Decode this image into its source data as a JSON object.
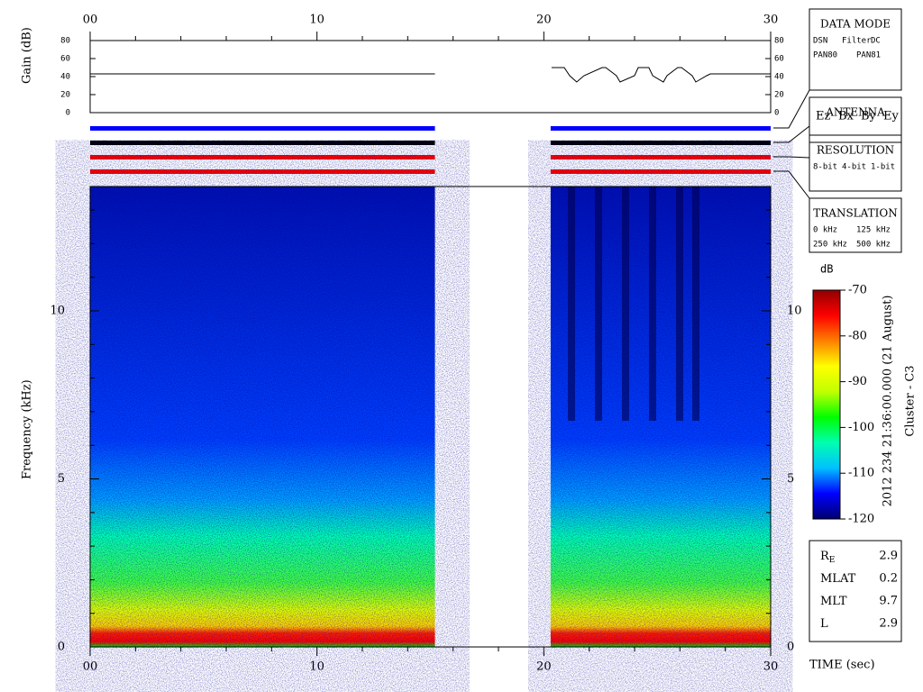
{
  "time_axis": {
    "label": "TIME (sec)",
    "xlim": [
      0,
      30
    ],
    "ticks": [
      {
        "value": 0,
        "label": "00"
      },
      10,
      20,
      30
    ],
    "minor_ticks": [
      2,
      4,
      6,
      8,
      12,
      14,
      16,
      18,
      22,
      24,
      26,
      28
    ]
  },
  "data_segments": [
    [
      0,
      15.2
    ],
    [
      20.3,
      30
    ]
  ],
  "gain_panel": {
    "label": "Gain (dB)",
    "ylim": [
      0,
      80
    ],
    "yticks": [
      0,
      20,
      40,
      60,
      80
    ],
    "line": [
      {
        "x": [
          0,
          15.2
        ],
        "y": [
          43,
          43
        ]
      },
      {
        "x": [
          20.34,
          20.9,
          21.14,
          21.45,
          21.77,
          22.57,
          22.73,
          23.2,
          23.36,
          24.0,
          24.16,
          24.63,
          24.8,
          25.27,
          25.43,
          25.9,
          26.07,
          26.54,
          26.7,
          27.18,
          27.34,
          30
        ],
        "y": [
          50,
          50,
          41,
          34,
          41,
          50,
          50,
          41,
          34,
          41,
          50,
          50,
          41,
          34,
          41,
          50,
          50,
          41,
          34,
          41,
          43,
          43
        ]
      }
    ]
  },
  "status_bars": [
    {
      "color": "#0000ff"
    },
    {
      "color": "#000000"
    },
    {
      "color": "#ff0000"
    },
    {
      "color": "#ff0000"
    }
  ],
  "frequency_axis": {
    "label": "Frequency (kHz)",
    "ylim": [
      0,
      13.7
    ],
    "yticks": [
      0,
      5,
      10
    ],
    "minor_yticks": [
      1,
      2,
      3,
      4,
      6,
      7,
      8,
      9,
      11,
      12,
      13
    ]
  },
  "colorbar": {
    "unit": "dB",
    "range": [
      -120,
      -70
    ],
    "ticks": [
      -70,
      -80,
      -90,
      -100,
      -110,
      -120
    ],
    "colors": [
      "#000070",
      "#0000ff",
      "#00c0ff",
      "#00ffb0",
      "#00ff00",
      "#c0ff00",
      "#ffff00",
      "#ff8000",
      "#ff0000",
      "#900000"
    ]
  },
  "caption": "2012 234 21:36:00.000 (21 August)",
  "spacecraft": "Cluster - C3",
  "legends": [
    {
      "title": "DATA MODE",
      "rows": [
        [
          {
            "text": "DSN",
            "color": "#ff0000"
          },
          {
            "text": "Filter",
            "color": "#00c000"
          },
          {
            "text": "DC",
            "color": "#0000ff"
          }
        ],
        [
          {
            "text": "PAN80",
            "color": "#000000"
          },
          {
            "text": "PAN81",
            "color": "#00c0c0"
          }
        ]
      ]
    },
    {
      "title": "ANTENNA",
      "rows": [
        [
          {
            "text": "Ez",
            "color": "#ff0000"
          },
          {
            "text": "Bx",
            "color": "#00c000"
          },
          {
            "text": "By",
            "color": "#0000ff"
          },
          {
            "text": "Ey",
            "color": "#000000"
          }
        ]
      ]
    },
    {
      "title": "RESOLUTION",
      "rows": [
        [
          {
            "text": "8-bit",
            "color": "#ff0000"
          },
          {
            "text": "4-bit",
            "color": "#00c000"
          },
          {
            "text": "1-bit",
            "color": "#0000ff"
          }
        ]
      ]
    },
    {
      "title": "TRANSLATION",
      "rows": [
        [
          {
            "text": "0 kHz",
            "color": "#ff0000"
          },
          {
            "text": "125 kHz",
            "color": "#00c000"
          }
        ],
        [
          {
            "text": "250 kHz",
            "color": "#0000ff"
          },
          {
            "text": "500 kHz",
            "color": "#000000"
          }
        ]
      ]
    }
  ],
  "ephemeris": [
    {
      "label": "R",
      "sub": "E",
      "value": 2.9
    },
    {
      "label": "MLAT",
      "value": 0.2
    },
    {
      "label": "MLT",
      "value": 9.7
    },
    {
      "label": "L",
      "value": 2.9
    }
  ]
}
